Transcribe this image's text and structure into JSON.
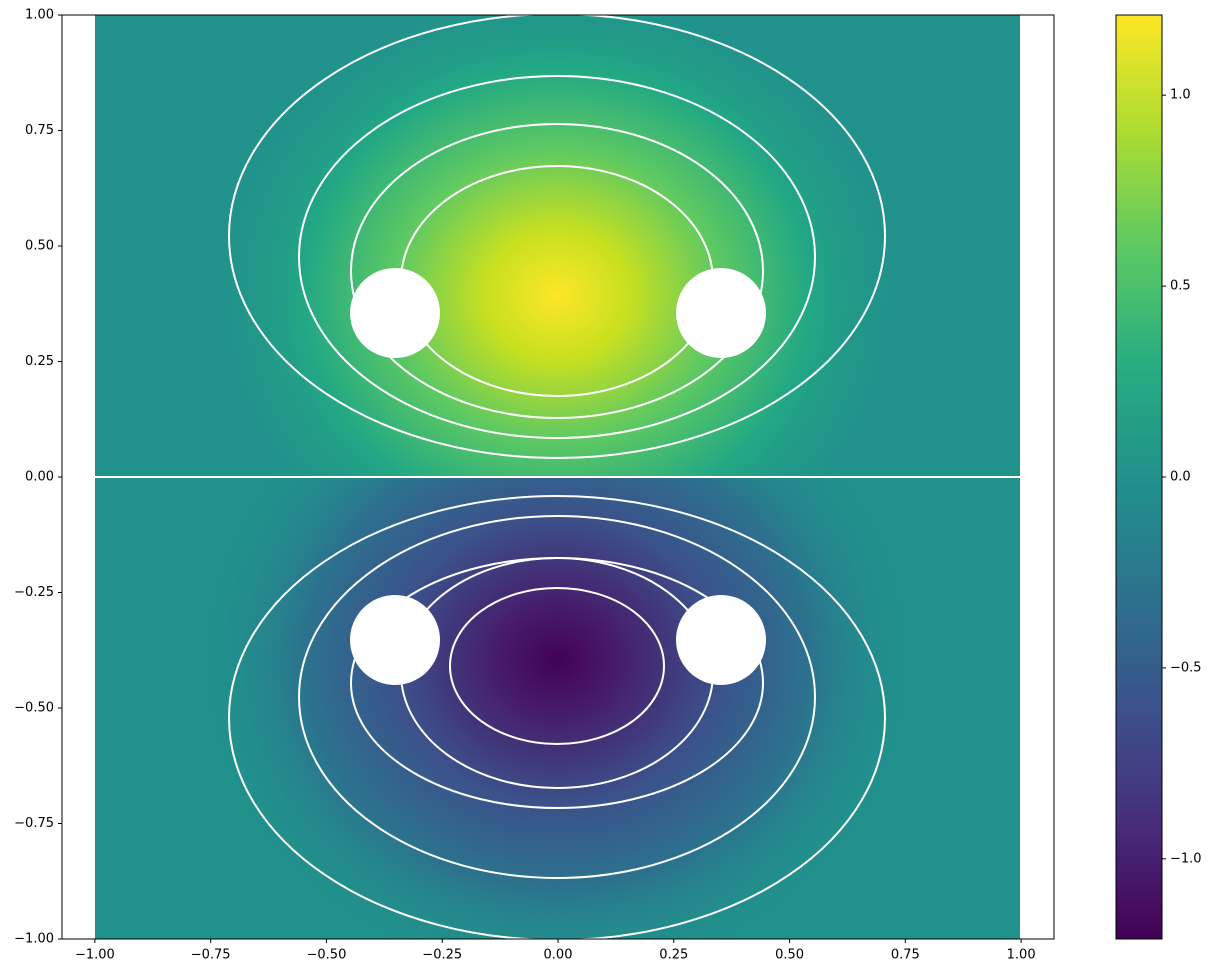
{
  "chart_data": {
    "type": "heatmap",
    "xlim": [
      -1.071,
      1.071
    ],
    "ylim": [
      -1,
      1
    ],
    "xticks": [
      {
        "value": -1,
        "label": "−1.00"
      },
      {
        "value": -0.75,
        "label": "−0.75"
      },
      {
        "value": -0.5,
        "label": "−0.50"
      },
      {
        "value": -0.25,
        "label": "−0.25"
      },
      {
        "value": 0,
        "label": "0.00"
      },
      0.25,
      {
        "value": 0.5,
        "label": "0.50"
      },
      0.75,
      {
        "value": 1,
        "label": "1.00"
      }
    ],
    "yticks": [
      {
        "value": -1,
        "label": "−1.00"
      },
      {
        "value": -0.75,
        "label": "−0.75"
      },
      {
        "value": -0.5,
        "label": "−0.50"
      },
      {
        "value": -0.25,
        "label": "−0.25"
      },
      {
        "value": 0,
        "label": "0.00"
      },
      0.25,
      {
        "value": 0.5,
        "label": "0.50"
      },
      0.75,
      {
        "value": 1,
        "label": "1.00"
      }
    ],
    "colorbar": {
      "lim": [
        -1.21,
        1.21
      ],
      "ticks": [
        {
          "value": -1,
          "label": "−1.0"
        },
        {
          "value": -0.5,
          "label": "−0.5"
        },
        {
          "value": 0,
          "label": "0.0"
        },
        0.5,
        {
          "value": 1,
          "label": "1.0"
        }
      ]
    }
  }
}
